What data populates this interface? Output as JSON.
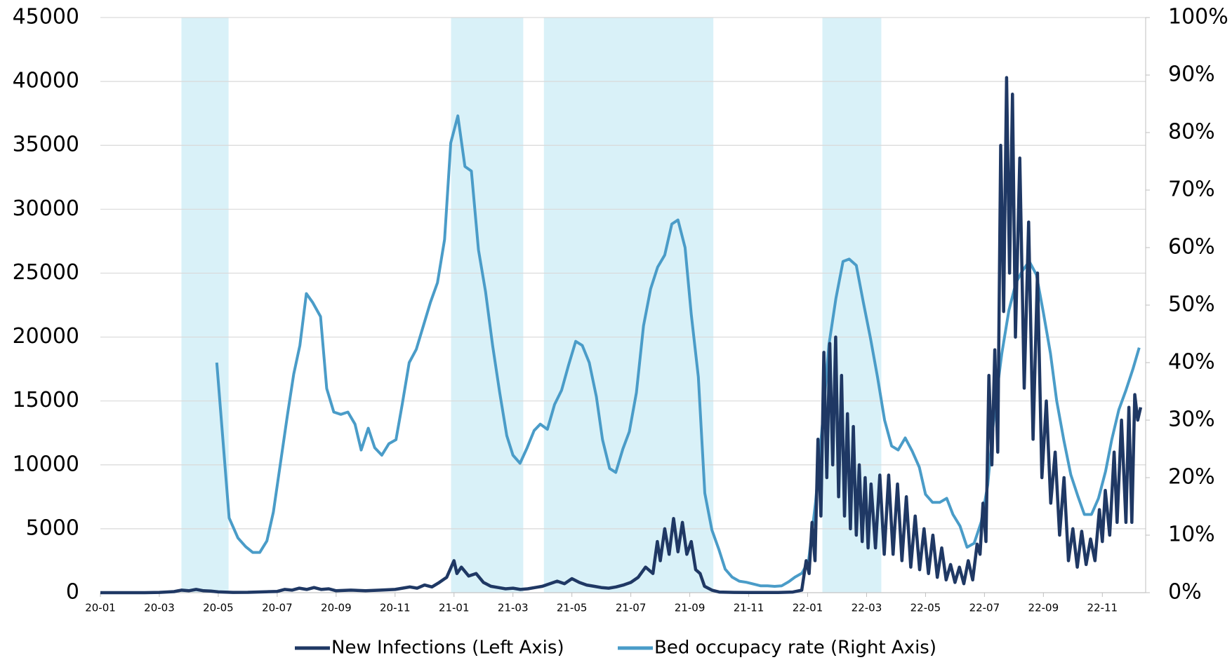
{
  "chart_data": {
    "type": "line",
    "legend": "bottom",
    "grid": true,
    "shaded_color": "#d9f1f8",
    "shaded_periods": [
      [
        2.75,
        4.35
      ],
      [
        11.9,
        14.35
      ],
      [
        15.05,
        20.8
      ],
      [
        24.5,
        26.5
      ]
    ],
    "xlim": [
      0,
      35.47
    ],
    "xticks": [
      {
        "value": 0,
        "label": "20-01"
      },
      {
        "value": 2,
        "label": "20-03"
      },
      {
        "value": 4,
        "label": "20-05"
      },
      {
        "value": 6,
        "label": "20-07"
      },
      {
        "value": 8,
        "label": "20-09"
      },
      {
        "value": 10,
        "label": "20-11"
      },
      {
        "value": 12,
        "label": "21-01"
      },
      {
        "value": 14,
        "label": "21-03"
      },
      {
        "value": 16,
        "label": "21-05"
      },
      {
        "value": 18,
        "label": "21-07"
      },
      {
        "value": 20,
        "label": "21-09"
      },
      {
        "value": 22,
        "label": "21-11"
      },
      {
        "value": 24,
        "label": "22-01"
      },
      {
        "value": 26,
        "label": "22-03"
      },
      {
        "value": 28,
        "label": "22-05"
      },
      {
        "value": 30,
        "label": "22-07"
      },
      {
        "value": 32,
        "label": "22-09"
      },
      {
        "value": 34,
        "label": "22-11"
      }
    ],
    "ylim": [
      0,
      45000
    ],
    "yticks": [
      0,
      5000,
      10000,
      15000,
      20000,
      25000,
      30000,
      35000,
      40000,
      45000
    ],
    "y2lim": [
      0,
      100
    ],
    "y2ticks": [
      {
        "value": 0,
        "label": "0%"
      },
      {
        "value": 10,
        "label": "10%"
      },
      {
        "value": 20,
        "label": "20%"
      },
      {
        "value": 30,
        "label": "30%"
      },
      {
        "value": 40,
        "label": "40%"
      },
      {
        "value": 50,
        "label": "50%"
      },
      {
        "value": 60,
        "label": "60%"
      },
      {
        "value": 70,
        "label": "70%"
      },
      {
        "value": 80,
        "label": "80%"
      },
      {
        "value": 90,
        "label": "90%"
      },
      {
        "value": 100,
        "label": "100%"
      }
    ],
    "series": [
      {
        "name": "New Infections (Left Axis)",
        "color": "#1f3864",
        "axis": "y",
        "x": [
          0,
          0.5,
          1,
          1.5,
          2,
          2.5,
          2.75,
          3,
          3.25,
          3.5,
          3.75,
          4,
          4.5,
          5,
          5.5,
          6,
          6.25,
          6.5,
          6.75,
          7,
          7.25,
          7.5,
          7.75,
          8,
          8.5,
          9,
          9.5,
          10,
          10.25,
          10.5,
          10.75,
          11,
          11.25,
          11.5,
          11.75,
          12,
          12.1,
          12.25,
          12.5,
          12.75,
          13,
          13.25,
          13.5,
          13.75,
          14,
          14.25,
          14.5,
          14.75,
          15,
          15.25,
          15.5,
          15.75,
          16,
          16.25,
          16.5,
          16.75,
          17,
          17.25,
          17.5,
          17.75,
          18,
          18.25,
          18.5,
          18.75,
          18.9,
          19.0,
          19.15,
          19.3,
          19.45,
          19.6,
          19.75,
          19.9,
          20.05,
          20.2,
          20.35,
          20.5,
          20.75,
          21,
          21.5,
          22,
          23,
          23.5,
          23.8,
          23.95,
          24.05,
          24.15,
          24.25,
          24.35,
          24.45,
          24.55,
          24.65,
          24.75,
          24.85,
          24.95,
          25.05,
          25.15,
          25.25,
          25.35,
          25.45,
          25.55,
          25.65,
          25.75,
          25.85,
          25.95,
          26.05,
          26.15,
          26.3,
          26.45,
          26.6,
          26.75,
          26.9,
          27.05,
          27.2,
          27.35,
          27.5,
          27.65,
          27.8,
          27.95,
          28.1,
          28.25,
          28.4,
          28.55,
          28.7,
          28.85,
          29.0,
          29.15,
          29.3,
          29.45,
          29.6,
          29.75,
          29.85,
          29.95,
          30.05,
          30.15,
          30.25,
          30.35,
          30.45,
          30.55,
          30.65,
          30.75,
          30.85,
          30.95,
          31.05,
          31.2,
          31.35,
          31.5,
          31.65,
          31.8,
          31.95,
          32.1,
          32.25,
          32.4,
          32.55,
          32.7,
          32.85,
          33.0,
          33.15,
          33.3,
          33.45,
          33.6,
          33.75,
          33.9,
          34.0,
          34.1,
          34.25,
          34.4,
          34.5,
          34.65,
          34.8,
          34.9,
          35.0,
          35.1,
          35.2,
          35.3
        ],
        "values": [
          0,
          0,
          0,
          0,
          20,
          80,
          200,
          150,
          250,
          150,
          120,
          60,
          20,
          30,
          60,
          100,
          250,
          200,
          350,
          250,
          400,
          250,
          300,
          150,
          200,
          150,
          200,
          250,
          350,
          450,
          350,
          600,
          450,
          800,
          1200,
          2500,
          1500,
          2000,
          1300,
          1500,
          800,
          500,
          400,
          300,
          350,
          250,
          300,
          400,
          500,
          700,
          900,
          700,
          1100,
          800,
          600,
          500,
          400,
          350,
          450,
          600,
          800,
          1200,
          2000,
          1500,
          4000,
          2500,
          5000,
          3000,
          5800,
          3200,
          5500,
          3000,
          4000,
          1800,
          1500,
          500,
          200,
          50,
          20,
          10,
          10,
          50,
          200,
          2500,
          1500,
          5500,
          2500,
          12000,
          6000,
          18800,
          9000,
          19500,
          10000,
          20000,
          7500,
          17000,
          6000,
          14000,
          5000,
          13000,
          4500,
          10000,
          4000,
          9000,
          3500,
          8500,
          3500,
          9200,
          3000,
          9200,
          3000,
          8500,
          2500,
          7500,
          2000,
          6000,
          1800,
          5000,
          1500,
          4500,
          1200,
          3500,
          1000,
          2200,
          800,
          2000,
          700,
          2500,
          1000,
          3800,
          3000,
          7000,
          4000,
          17000,
          10000,
          19000,
          11000,
          35000,
          22000,
          40300,
          25000,
          39000,
          20000,
          34000,
          16000,
          29000,
          12000,
          25000,
          9000,
          15000,
          7000,
          11000,
          4500,
          9000,
          2500,
          5000,
          2000,
          4800,
          2200,
          4200,
          2500,
          6500,
          4000,
          8000,
          4500,
          11000,
          5500,
          13500,
          5500,
          14500,
          5500,
          15500,
          13500,
          14500
        ]
      },
      {
        "name": "Bed occupacy rate (Right Axis)",
        "color": "#4a9cc8",
        "axis": "y2",
        "x": [
          3.95,
          4.37,
          4.67,
          4.93,
          5.17,
          5.41,
          5.65,
          5.87,
          6.11,
          6.35,
          6.56,
          6.77,
          6.99,
          7.2,
          7.47,
          7.68,
          7.92,
          8.16,
          8.4,
          8.64,
          8.85,
          9.09,
          9.31,
          9.55,
          9.79,
          10.03,
          10.24,
          10.48,
          10.72,
          10.96,
          11.2,
          11.44,
          11.68,
          11.89,
          12.13,
          12.37,
          12.59,
          12.83,
          13.07,
          13.31,
          13.55,
          13.79,
          14.0,
          14.24,
          14.48,
          14.72,
          14.93,
          15.17,
          15.41,
          15.65,
          15.89,
          16.13,
          16.35,
          16.59,
          16.83,
          17.04,
          17.28,
          17.49,
          17.73,
          17.95,
          18.19,
          18.43,
          18.67,
          18.91,
          19.15,
          19.39,
          19.6,
          19.84,
          20.05,
          20.29,
          20.51,
          20.75,
          20.99,
          21.2,
          21.44,
          21.68,
          21.92,
          22.16,
          22.4,
          22.64,
          22.88,
          23.12,
          23.36,
          23.57,
          23.81,
          24.03,
          24.27,
          24.48,
          24.72,
          24.96,
          25.2,
          25.41,
          25.65,
          25.89,
          26.13,
          26.37,
          26.61,
          26.85,
          27.07,
          27.31,
          27.55,
          27.79,
          28.0,
          28.24,
          28.48,
          28.72,
          28.93,
          29.17,
          29.41,
          29.65,
          29.89,
          30.11,
          30.35,
          30.59,
          30.83,
          31.07,
          31.28,
          31.52,
          31.76,
          32.0,
          32.24,
          32.45,
          32.69,
          32.93,
          33.17,
          33.39,
          33.63,
          33.87,
          34.11,
          34.32,
          34.56,
          34.8,
          35.04,
          35.25
        ],
        "values": [
          40,
          13,
          9.5,
          8,
          7,
          7,
          9,
          14,
          22.5,
          31,
          38,
          43,
          52,
          50.5,
          48,
          35.5,
          31.4,
          31,
          31.4,
          29.3,
          24.8,
          28.6,
          25.2,
          23.9,
          25.9,
          26.6,
          32.7,
          40,
          42.3,
          46.4,
          50.5,
          53.9,
          61.4,
          78.2,
          82.9,
          74.1,
          73.3,
          59.6,
          52.3,
          43,
          34.8,
          27.3,
          23.9,
          22.5,
          25.2,
          28.2,
          29.3,
          28.4,
          32.7,
          35.2,
          39.6,
          43.7,
          43,
          40,
          34.1,
          26.6,
          21.6,
          20.9,
          25,
          28,
          34.8,
          46.4,
          52.8,
          56.6,
          58.7,
          64.1,
          64.8,
          60,
          48.4,
          37.5,
          17.3,
          10.9,
          7.5,
          4.1,
          2.7,
          2,
          1.8,
          1.5,
          1.2,
          1.2,
          1.1,
          1.2,
          1.9,
          2.7,
          3.4,
          5.5,
          15.7,
          28,
          43,
          51.2,
          57.6,
          58,
          56.9,
          50.5,
          44.3,
          37.5,
          30,
          25.5,
          24.8,
          26.9,
          24.6,
          21.8,
          17.1,
          15.7,
          15.7,
          16.4,
          13.6,
          11.6,
          7.9,
          8.6,
          12.3,
          18.7,
          32.1,
          41.6,
          49.1,
          53.9,
          55.9,
          57.6,
          55.3,
          48.7,
          41.6,
          33.4,
          26.6,
          20.5,
          16.8,
          13.6,
          13.6,
          16.4,
          21.1,
          26.6,
          31.8,
          35.2,
          38.9,
          42.6
        ]
      }
    ]
  }
}
